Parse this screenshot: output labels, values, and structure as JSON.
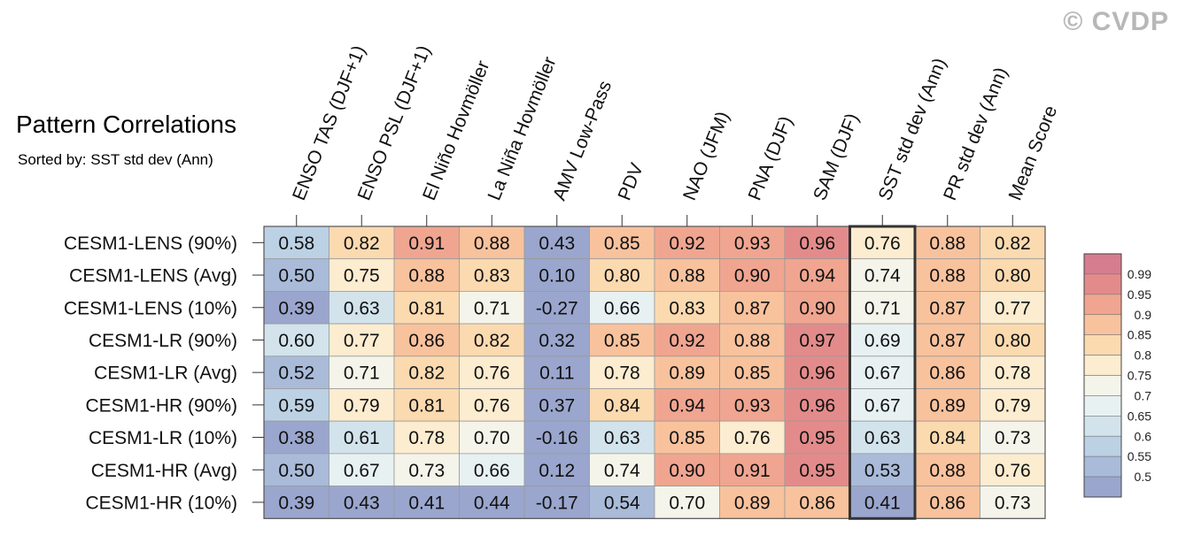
{
  "title": "Pattern Correlations",
  "subtitle": "Sorted by: SST std dev (Ann)",
  "watermark": "© CVDP",
  "chart_data": {
    "type": "heatmap",
    "columns": [
      "ENSO TAS (DJF+1)",
      "ENSO PSL (DJF+1)",
      "El Niño Hovmöller",
      "La Niña Hovmöller",
      "AMV Low-Pass",
      "PDV",
      "NAO (JFM)",
      "PNA (DJF)",
      "SAM (DJF)",
      "SST std dev (Ann)",
      "PR std dev (Ann)",
      "Mean Score"
    ],
    "rows": [
      "CESM1-LENS (90%)",
      "CESM1-LENS (Avg)",
      "CESM1-LENS (10%)",
      "CESM1-LR (90%)",
      "CESM1-LR (Avg)",
      "CESM1-HR (90%)",
      "CESM1-LR (10%)",
      "CESM1-HR (Avg)",
      "CESM1-HR (10%)"
    ],
    "values": [
      [
        "0.58",
        "0.82",
        "0.91",
        "0.88",
        "0.43",
        "0.85",
        "0.92",
        "0.93",
        "0.96",
        "0.76",
        "0.88",
        "0.82"
      ],
      [
        "0.50",
        "0.75",
        "0.88",
        "0.83",
        "0.10",
        "0.80",
        "0.88",
        "0.90",
        "0.94",
        "0.74",
        "0.88",
        "0.80"
      ],
      [
        "0.39",
        "0.63",
        "0.81",
        "0.71",
        "-0.27",
        "0.66",
        "0.83",
        "0.87",
        "0.90",
        "0.71",
        "0.87",
        "0.77"
      ],
      [
        "0.60",
        "0.77",
        "0.86",
        "0.82",
        "0.32",
        "0.85",
        "0.92",
        "0.88",
        "0.97",
        "0.69",
        "0.87",
        "0.80"
      ],
      [
        "0.52",
        "0.71",
        "0.82",
        "0.76",
        "0.11",
        "0.78",
        "0.89",
        "0.85",
        "0.96",
        "0.67",
        "0.86",
        "0.78"
      ],
      [
        "0.59",
        "0.79",
        "0.81",
        "0.76",
        "0.37",
        "0.84",
        "0.94",
        "0.93",
        "0.96",
        "0.67",
        "0.89",
        "0.79"
      ],
      [
        "0.38",
        "0.61",
        "0.78",
        "0.70",
        "-0.16",
        "0.63",
        "0.85",
        "0.76",
        "0.95",
        "0.63",
        "0.84",
        "0.73"
      ],
      [
        "0.50",
        "0.67",
        "0.73",
        "0.66",
        "0.12",
        "0.74",
        "0.90",
        "0.91",
        "0.95",
        "0.53",
        "0.88",
        "0.76"
      ],
      [
        "0.39",
        "0.43",
        "0.41",
        "0.44",
        "-0.17",
        "0.54",
        "0.70",
        "0.89",
        "0.86",
        "0.41",
        "0.86",
        "0.73"
      ]
    ],
    "highlighted_column": "SST std dev (Ann)",
    "colorbar": {
      "labels": [
        "0.99",
        "0.95",
        "0.9",
        "0.85",
        "0.8",
        "0.75",
        "0.7",
        "0.65",
        "0.6",
        "0.55",
        "0.5"
      ],
      "levels": [
        0.5,
        0.55,
        0.6,
        0.65,
        0.7,
        0.75,
        0.8,
        0.85,
        0.9,
        0.95,
        0.99
      ],
      "colors": [
        "#9aa6cd",
        "#a9bbd9",
        "#bcd1e4",
        "#d2e3ec",
        "#e8f1f2",
        "#f5f4ea",
        "#fcecd0",
        "#fbdab0",
        "#f8c29d",
        "#f0a590",
        "#e38b8b",
        "#d67d8f"
      ]
    }
  }
}
